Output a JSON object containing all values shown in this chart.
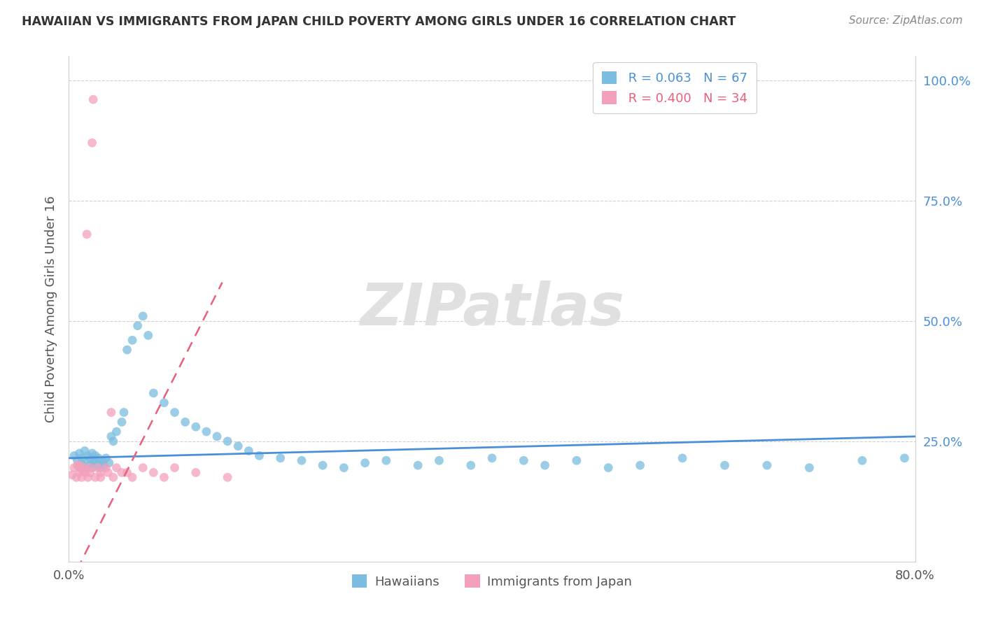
{
  "title": "HAWAIIAN VS IMMIGRANTS FROM JAPAN CHILD POVERTY AMONG GIRLS UNDER 16 CORRELATION CHART",
  "source": "Source: ZipAtlas.com",
  "ylabel": "Child Poverty Among Girls Under 16",
  "xlim": [
    0.0,
    0.8
  ],
  "ylim": [
    0.0,
    1.05
  ],
  "hawaiians_R": 0.063,
  "hawaiians_N": 67,
  "japan_R": 0.4,
  "japan_N": 34,
  "hawaiians_color": "#7bbde0",
  "japan_color": "#f4a0bc",
  "hawaii_line_color": "#4a90d9",
  "japan_line_color": "#e8607a",
  "watermark_color": "#e0e0e0",
  "hawaiians_x": [
    0.005,
    0.008,
    0.01,
    0.01,
    0.012,
    0.013,
    0.015,
    0.015,
    0.017,
    0.018,
    0.02,
    0.02,
    0.022,
    0.022,
    0.023,
    0.025,
    0.025,
    0.027,
    0.028,
    0.03,
    0.03,
    0.032,
    0.033,
    0.035,
    0.038,
    0.04,
    0.042,
    0.045,
    0.05,
    0.052,
    0.055,
    0.06,
    0.065,
    0.07,
    0.075,
    0.08,
    0.09,
    0.1,
    0.11,
    0.12,
    0.13,
    0.14,
    0.15,
    0.16,
    0.17,
    0.18,
    0.2,
    0.22,
    0.24,
    0.26,
    0.28,
    0.3,
    0.33,
    0.35,
    0.38,
    0.4,
    0.43,
    0.45,
    0.48,
    0.51,
    0.54,
    0.58,
    0.62,
    0.66,
    0.7,
    0.75,
    0.79
  ],
  "hawaiians_y": [
    0.22,
    0.21,
    0.195,
    0.225,
    0.215,
    0.2,
    0.23,
    0.21,
    0.195,
    0.22,
    0.2,
    0.215,
    0.195,
    0.225,
    0.205,
    0.21,
    0.22,
    0.2,
    0.215,
    0.205,
    0.195,
    0.21,
    0.2,
    0.215,
    0.205,
    0.26,
    0.25,
    0.27,
    0.29,
    0.31,
    0.44,
    0.46,
    0.49,
    0.51,
    0.47,
    0.35,
    0.33,
    0.31,
    0.29,
    0.28,
    0.27,
    0.26,
    0.25,
    0.24,
    0.23,
    0.22,
    0.215,
    0.21,
    0.2,
    0.195,
    0.205,
    0.21,
    0.2,
    0.21,
    0.2,
    0.215,
    0.21,
    0.2,
    0.21,
    0.195,
    0.2,
    0.215,
    0.2,
    0.2,
    0.195,
    0.21,
    0.215
  ],
  "japan_x": [
    0.003,
    0.005,
    0.007,
    0.008,
    0.01,
    0.01,
    0.012,
    0.013,
    0.015,
    0.015,
    0.017,
    0.018,
    0.02,
    0.02,
    0.022,
    0.023,
    0.025,
    0.027,
    0.03,
    0.03,
    0.035,
    0.037,
    0.04,
    0.042,
    0.045,
    0.05,
    0.055,
    0.06,
    0.07,
    0.08,
    0.09,
    0.1,
    0.12,
    0.15
  ],
  "japan_y": [
    0.18,
    0.195,
    0.175,
    0.2,
    0.185,
    0.2,
    0.175,
    0.19,
    0.185,
    0.195,
    0.68,
    0.175,
    0.195,
    0.185,
    0.87,
    0.96,
    0.175,
    0.195,
    0.185,
    0.175,
    0.195,
    0.185,
    0.31,
    0.175,
    0.195,
    0.185,
    0.185,
    0.175,
    0.195,
    0.185,
    0.175,
    0.195,
    0.185,
    0.175
  ]
}
